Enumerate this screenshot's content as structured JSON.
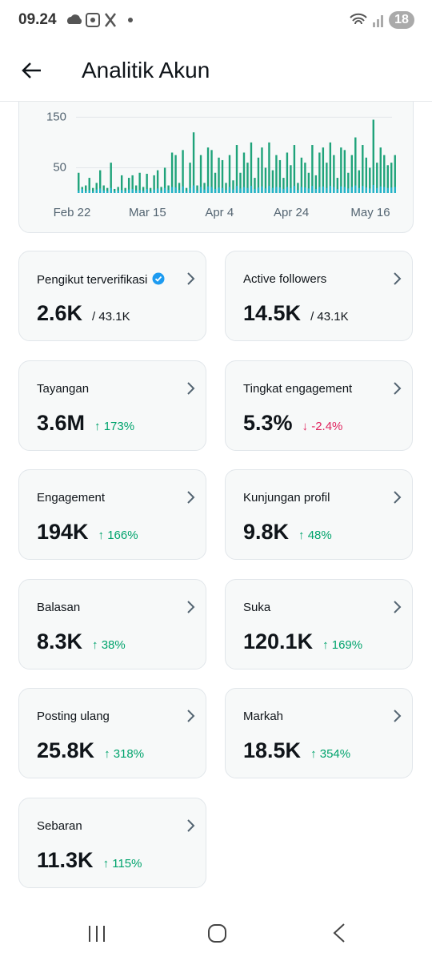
{
  "status_bar": {
    "time": "09.24",
    "battery": "18"
  },
  "header": {
    "title": "Analitik Akun"
  },
  "chart_data": {
    "type": "bar",
    "categories": [
      "Feb 22",
      null,
      null,
      null,
      null,
      null,
      null,
      null,
      null,
      null,
      null,
      null,
      null,
      null,
      null,
      null,
      null,
      null,
      null,
      null,
      null,
      "Mar 15",
      null,
      null,
      null,
      null,
      null,
      null,
      null,
      null,
      null,
      null,
      null,
      null,
      null,
      null,
      null,
      null,
      null,
      null,
      null,
      "Apr 4",
      null,
      null,
      null,
      null,
      null,
      null,
      null,
      null,
      null,
      null,
      null,
      null,
      null,
      null,
      null,
      null,
      null,
      null,
      null,
      "Apr 24",
      null,
      null,
      null,
      null,
      null,
      null,
      null,
      null,
      null,
      null,
      null,
      null,
      null,
      null,
      null,
      null,
      null,
      null,
      null,
      null,
      null,
      "May 16",
      null,
      null,
      null,
      null,
      null
    ],
    "series": [
      {
        "color": "#1fa37a",
        "values": [
          40,
          12,
          15,
          30,
          10,
          20,
          45,
          15,
          10,
          60,
          8,
          12,
          35,
          10,
          30,
          35,
          15,
          40,
          12,
          38,
          10,
          35,
          45,
          12,
          50,
          15,
          80,
          75,
          20,
          85,
          10,
          60,
          120,
          15,
          75,
          20,
          90,
          85,
          40,
          70,
          65,
          20,
          75,
          25,
          95,
          40,
          80,
          60,
          100,
          30,
          70,
          90,
          50,
          100,
          45,
          75,
          65,
          30,
          80,
          55,
          95,
          20,
          70,
          60,
          40,
          95,
          35,
          80,
          90,
          60,
          100,
          75,
          30,
          90,
          85,
          40,
          75,
          110,
          45,
          95,
          70,
          50,
          145,
          60,
          90,
          75,
          55,
          60,
          75
        ]
      },
      {
        "color": "#22b3c8",
        "values": [
          5,
          8,
          4,
          6,
          3,
          7,
          9,
          5,
          4,
          10,
          3,
          5,
          6,
          4,
          7,
          8,
          5,
          6,
          4,
          8,
          3,
          7,
          9,
          5,
          10,
          6,
          12,
          11,
          6,
          13,
          4,
          10,
          15,
          5,
          12,
          7,
          13,
          12,
          8,
          11,
          10,
          6,
          12,
          7,
          14,
          9,
          12,
          10,
          14,
          8,
          11,
          13,
          9,
          14,
          10,
          12,
          11,
          8,
          12,
          10,
          14,
          6,
          12,
          11,
          9,
          14,
          8,
          12,
          13,
          10,
          14,
          12,
          8,
          13,
          12,
          9,
          12,
          15,
          10,
          14,
          11,
          9,
          16,
          10,
          13,
          12,
          10,
          11,
          12
        ]
      }
    ],
    "ylim": [
      0,
      160
    ],
    "yticks": [
      50,
      150
    ],
    "grid": true
  },
  "cards": [
    {
      "title": "Pengikut terverifikasi",
      "value": "2.6K",
      "total": "/ 43.1K"
    },
    {
      "title": "Active followers",
      "value": "14.5K",
      "total": "/ 43.1K"
    },
    {
      "title": "Tayangan",
      "value": "3.6M",
      "change": "↑ 173%",
      "change_color": "#00a36c"
    },
    {
      "title": "Tingkat engagement",
      "value": "5.3%",
      "change": "↓ -2.4%",
      "change_color": "#e0245e"
    },
    {
      "title": "Engagement",
      "value": "194K",
      "change": "↑ 166%",
      "change_color": "#00a36c"
    },
    {
      "title": "Kunjungan profil",
      "value": "9.8K",
      "change": "↑ 48%",
      "change_color": "#00a36c"
    },
    {
      "title": "Balasan",
      "value": "8.3K",
      "change": "↑ 38%",
      "change_color": "#00a36c"
    },
    {
      "title": "Suka",
      "value": "120.1K",
      "change": "↑ 169%",
      "change_color": "#00a36c"
    },
    {
      "title": "Posting ulang",
      "value": "25.8K",
      "change": "↑ 318%",
      "change_color": "#00a36c"
    },
    {
      "title": "Markah",
      "value": "18.5K",
      "change": "↑ 354%",
      "change_color": "#00a36c"
    },
    {
      "title": "Sebaran",
      "value": "11.3K",
      "change": "↑ 115%",
      "change_color": "#00a36c"
    }
  ]
}
